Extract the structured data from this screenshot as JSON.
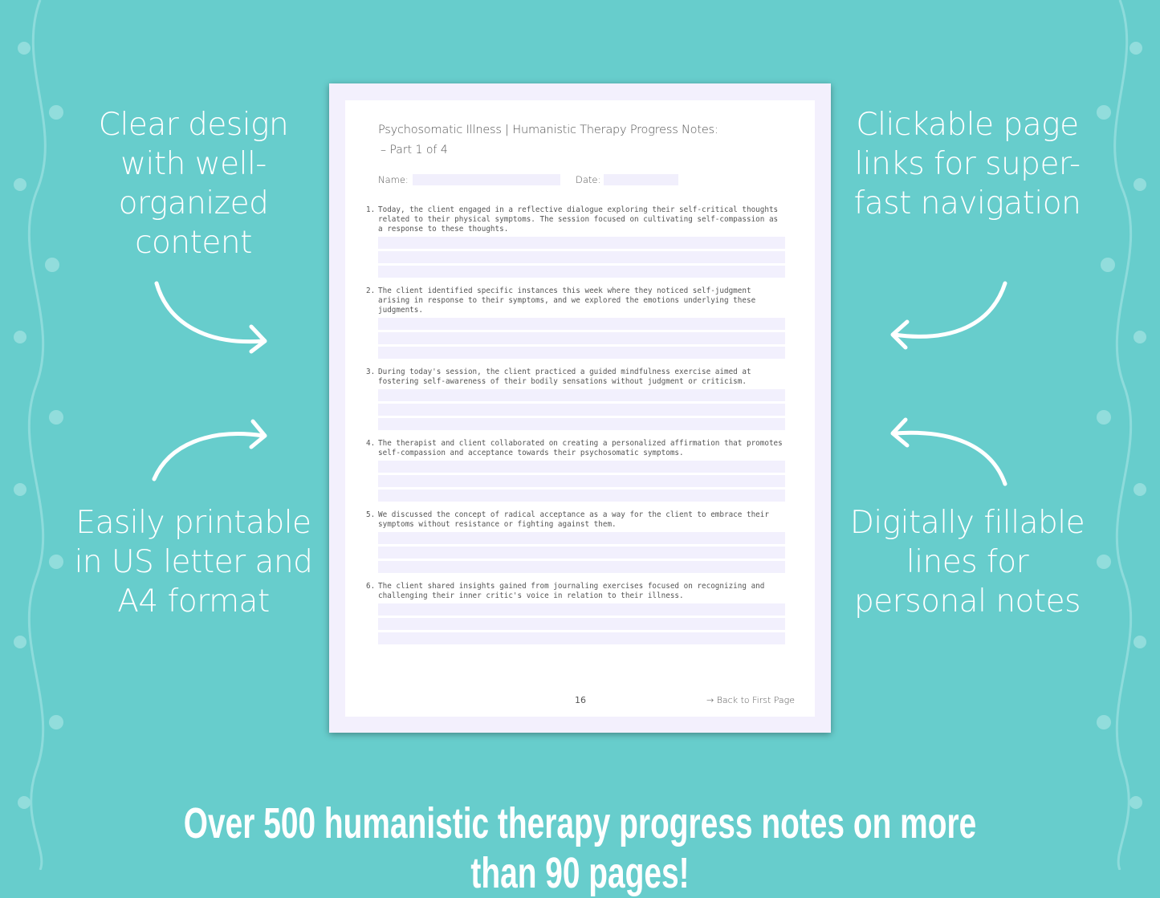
{
  "colors": {
    "background": "#67cdcc",
    "page_border": "#f3f0fd",
    "field": "#f1effc",
    "text": "#555555"
  },
  "left_top_text": "Clear design with well-organized content",
  "left_bottom_text": "Easily printable in US letter and A4 format",
  "right_top_text": "Clickable page links for super-fast navigation",
  "right_bottom_text": "Digitally fillable lines for personal notes",
  "banner": "Over 500 humanistic therapy progress notes on more than 90 pages!",
  "document": {
    "title": "Psychosomatic Illness | Humanistic Therapy Progress Notes:",
    "subtitle": "– Part 1 of 4",
    "name_label": "Name:",
    "date_label": "Date:",
    "items": [
      {
        "num": "1.",
        "text": "Today, the client engaged in a reflective dialogue exploring their self-critical thoughts related to their physical symptoms. The session focused on cultivating self-compassion as a response to these thoughts."
      },
      {
        "num": "2.",
        "text": "The client identified specific instances this week where they noticed self-judgment arising in response to their symptoms, and we explored the emotions underlying these judgments."
      },
      {
        "num": "3.",
        "text": "During today's session, the client practiced a guided mindfulness exercise aimed at fostering self-awareness of their bodily sensations without judgment or criticism."
      },
      {
        "num": "4.",
        "text": "The therapist and client collaborated on creating a personalized affirmation that promotes self-compassion and acceptance towards their psychosomatic symptoms."
      },
      {
        "num": "5.",
        "text": "We discussed the concept of radical acceptance as a way for the client to embrace their symptoms without resistance or fighting against them."
      },
      {
        "num": "6.",
        "text": "The client shared insights gained from journaling exercises focused on recognizing and challenging their inner critic's voice in relation to their illness."
      }
    ],
    "page_number": "16",
    "back_link": "→ Back to First Page"
  }
}
